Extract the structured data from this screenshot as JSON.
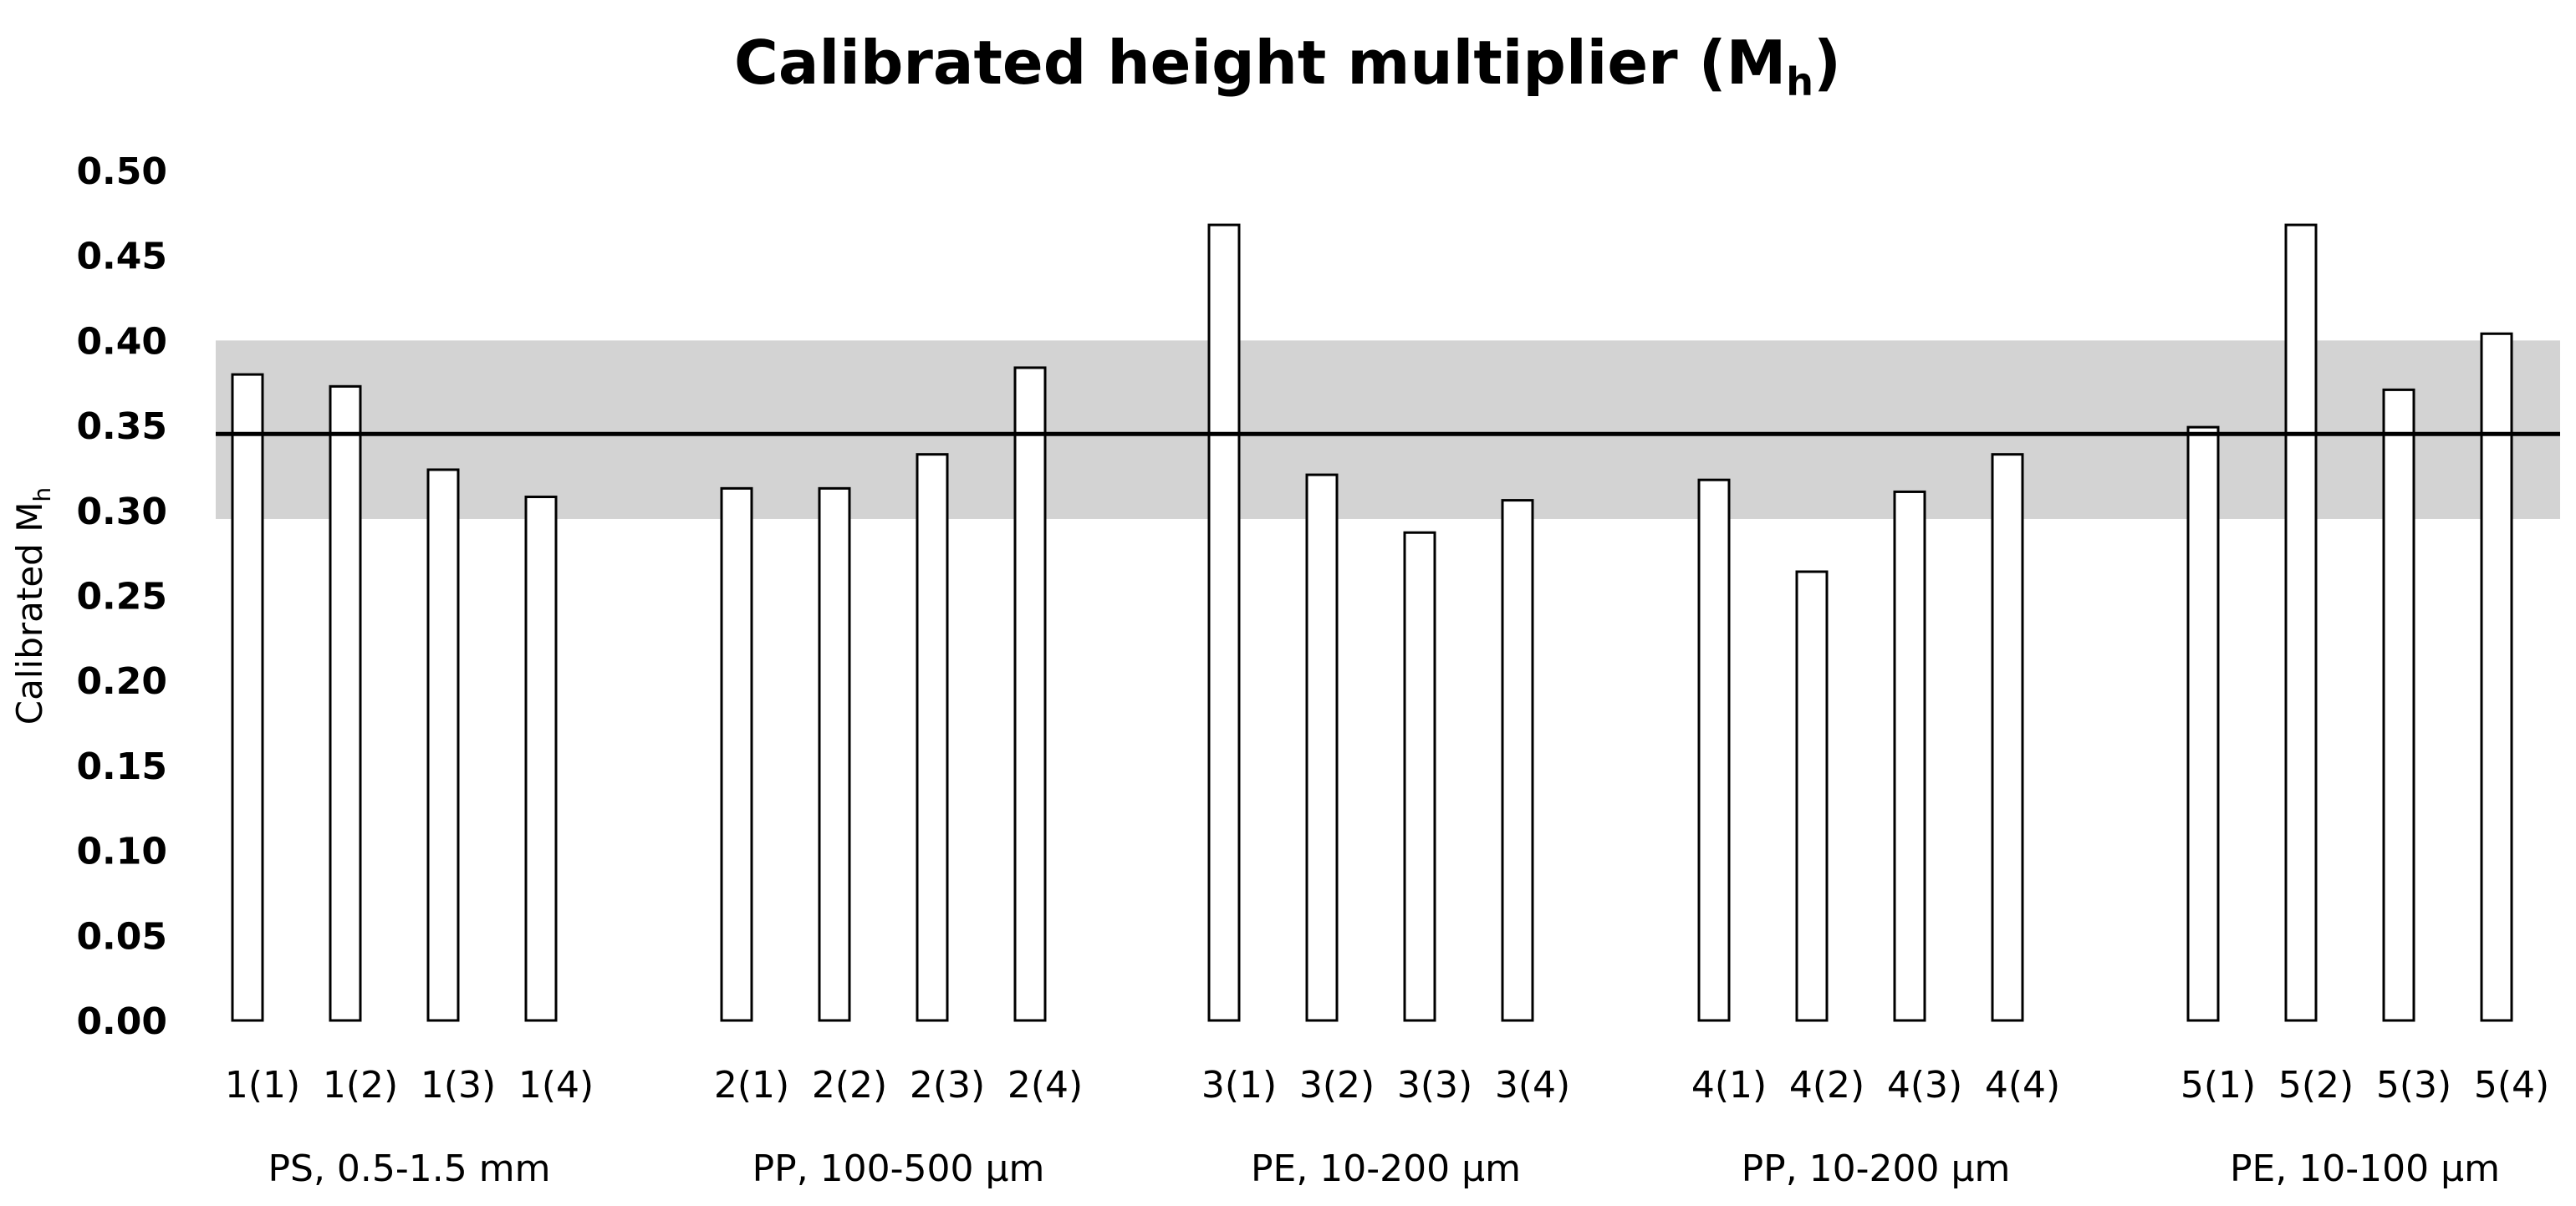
{
  "chart_data": {
    "type": "bar",
    "title": "Calibrated height multiplier (M",
    "title_subscript": "h",
    "title_end": ")",
    "ylabel": "Calibrated M",
    "ylabel_subscript": "h",
    "xlabel": "",
    "ylim": [
      0,
      0.5
    ],
    "yticks": [
      "0.00",
      "0.05",
      "0.10",
      "0.15",
      "0.20",
      "0.25",
      "0.30",
      "0.35",
      "0.40",
      "0.45",
      "0.50"
    ],
    "grid": false,
    "legend": "none",
    "bar_fill": "#ffffff",
    "bar_stroke": "#000000",
    "reference_line": {
      "value": 0.345,
      "color": "#000000"
    },
    "reference_band": {
      "from": 0.295,
      "to": 0.4,
      "color": "#d3d3d3"
    },
    "groups": [
      {
        "label": "PS, 0.5-1.5 mm",
        "categories": [
          "1(1)",
          "1(2)",
          "1(3)",
          "1(4)"
        ],
        "values": [
          0.38,
          0.373,
          0.324,
          0.308
        ]
      },
      {
        "label": "PP, 100-500 μm",
        "categories": [
          "2(1)",
          "2(2)",
          "2(3)",
          "2(4)"
        ],
        "values": [
          0.313,
          0.313,
          0.333,
          0.384
        ]
      },
      {
        "label": "PE, 10-200 μm",
        "categories": [
          "3(1)",
          "3(2)",
          "3(3)",
          "3(4)"
        ],
        "values": [
          0.468,
          0.321,
          0.287,
          0.306
        ]
      },
      {
        "label": "PP, 10-200 μm",
        "categories": [
          "4(1)",
          "4(2)",
          "4(3)",
          "4(4)"
        ],
        "values": [
          0.318,
          0.264,
          0.311,
          0.333
        ]
      },
      {
        "label": "PE, 10-100 μm",
        "categories": [
          "5(1)",
          "5(2)",
          "5(3)",
          "5(4)"
        ],
        "values": [
          0.349,
          0.468,
          0.371,
          0.404
        ]
      }
    ]
  }
}
